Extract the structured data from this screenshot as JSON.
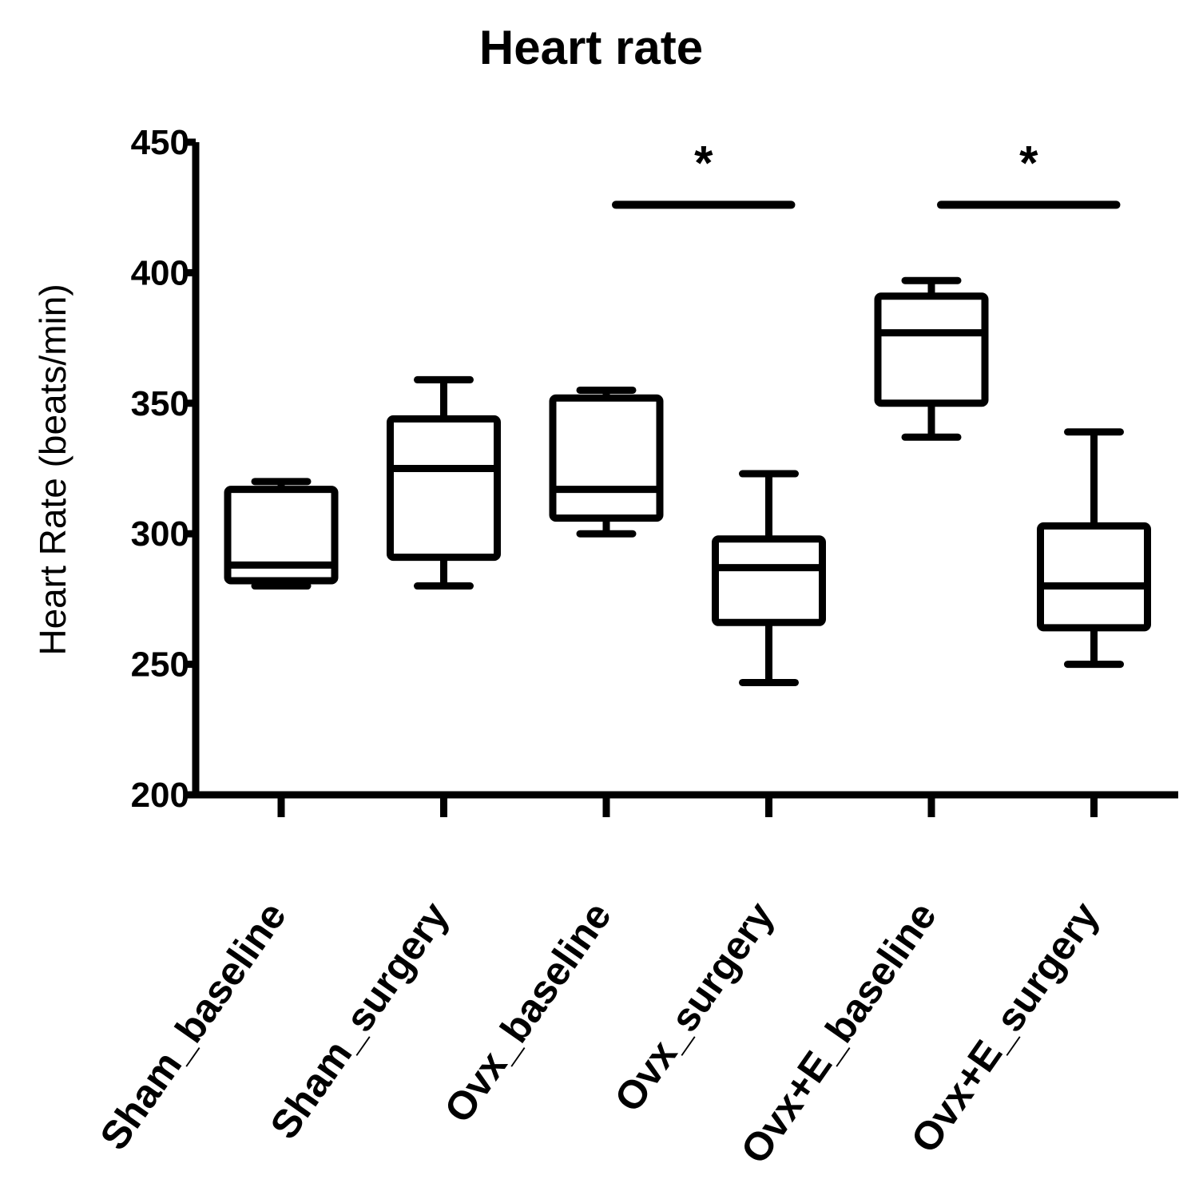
{
  "chart_data": {
    "type": "boxplot",
    "title": "Heart rate",
    "xlabel": "",
    "ylabel": "Heart Rate (beats/min)",
    "ylim": [
      200,
      450
    ],
    "yticks": [
      200,
      250,
      300,
      350,
      400,
      450
    ],
    "ytick_labels": [
      "200",
      "250",
      "300",
      "350",
      "400",
      "450"
    ],
    "grid": false,
    "categories": [
      "Sham_baseline",
      "Sham_surgery",
      "Ovx_baseline",
      "Ovx_surgery",
      "Ovx+E_baseline",
      "Ovx+E_surgery"
    ],
    "boxes": [
      {
        "name": "Sham_baseline",
        "min": 280,
        "q1": 282,
        "median": 288,
        "q3": 317,
        "max": 320
      },
      {
        "name": "Sham_surgery",
        "min": 280,
        "q1": 291,
        "median": 325,
        "q3": 344,
        "max": 359
      },
      {
        "name": "Ovx_baseline",
        "min": 300,
        "q1": 306,
        "median": 317,
        "q3": 352,
        "max": 355
      },
      {
        "name": "Ovx_surgery",
        "min": 243,
        "q1": 266,
        "median": 287,
        "q3": 298,
        "max": 323
      },
      {
        "name": "Ovx+E_baseline",
        "min": 337,
        "q1": 350,
        "median": 377,
        "q3": 391,
        "max": 397
      },
      {
        "name": "Ovx+E_surgery",
        "min": 250,
        "q1": 264,
        "median": 280,
        "q3": 303,
        "max": 339
      }
    ],
    "significance": [
      {
        "from": "Ovx_baseline",
        "to": "Ovx_surgery",
        "y": 426,
        "label": "*"
      },
      {
        "from": "Ovx+E_baseline",
        "to": "Ovx+E_surgery",
        "y": 426,
        "label": "*"
      }
    ]
  }
}
